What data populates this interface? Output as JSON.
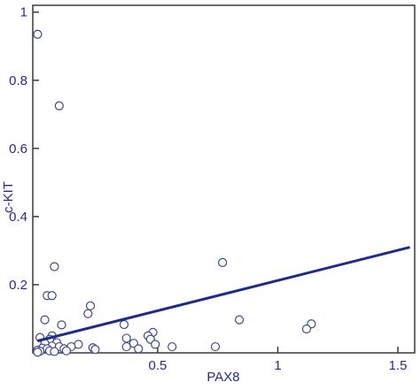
{
  "chart_data": {
    "type": "scatter",
    "title": "",
    "xlabel": "PAX8",
    "ylabel": "c-KIT",
    "xlim": [
      -0.02,
      1.57
    ],
    "ylim": [
      0,
      1.02
    ],
    "xticks": [
      {
        "value": 0.5,
        "label": "0.5"
      },
      {
        "value": 1.0,
        "label": "1"
      },
      {
        "value": 1.5,
        "label": "1.5"
      }
    ],
    "yticks": [
      {
        "value": 0.2,
        "label": "0.2"
      },
      {
        "value": 0.4,
        "label": "0.4"
      },
      {
        "value": 0.6,
        "label": "0.6"
      },
      {
        "value": 0.8,
        "label": "0.8"
      },
      {
        "value": 1.0,
        "label": "1"
      }
    ],
    "grid": false,
    "legend": "none",
    "colors": {
      "frame": "#3a3a3a",
      "marker": "#3c4a86",
      "regression_line": "#1f2a8c",
      "labels": "#2a2a8a"
    },
    "series": [
      {
        "points": [
          [
            0.0,
            0.935
          ],
          [
            0.09,
            0.725
          ],
          [
            0.07,
            0.253
          ],
          [
            0.77,
            0.265
          ],
          [
            0.04,
            0.168
          ],
          [
            0.06,
            0.168
          ],
          [
            0.22,
            0.138
          ],
          [
            0.21,
            0.115
          ],
          [
            0.84,
            0.097
          ],
          [
            0.03,
            0.097
          ],
          [
            0.1,
            0.082
          ],
          [
            0.36,
            0.083
          ],
          [
            1.14,
            0.085
          ],
          [
            1.12,
            0.07
          ],
          [
            0.48,
            0.06
          ],
          [
            0.46,
            0.05
          ],
          [
            0.06,
            0.05
          ],
          [
            0.01,
            0.045
          ],
          [
            0.37,
            0.043
          ],
          [
            0.05,
            0.04
          ],
          [
            0.47,
            0.04
          ],
          [
            0.08,
            0.03
          ],
          [
            0.03,
            0.028
          ],
          [
            0.4,
            0.028
          ],
          [
            0.49,
            0.025
          ],
          [
            0.17,
            0.025
          ],
          [
            0.06,
            0.02
          ],
          [
            0.09,
            0.018
          ],
          [
            0.14,
            0.018
          ],
          [
            0.23,
            0.015
          ],
          [
            0.37,
            0.018
          ],
          [
            0.56,
            0.018
          ],
          [
            0.74,
            0.018
          ],
          [
            0.02,
            0.014
          ],
          [
            0.04,
            0.012
          ],
          [
            0.11,
            0.012
          ],
          [
            0.42,
            0.012
          ],
          [
            0.24,
            0.01
          ],
          [
            0.0,
            0.008
          ],
          [
            0.01,
            0.005
          ],
          [
            0.05,
            0.006
          ],
          [
            0.12,
            0.006
          ],
          [
            0.07,
            0.004
          ],
          [
            0.0,
            0.002
          ]
        ]
      }
    ],
    "regression_line": {
      "x": [
        0.0,
        1.55
      ],
      "y": [
        0.035,
        0.31
      ]
    }
  }
}
